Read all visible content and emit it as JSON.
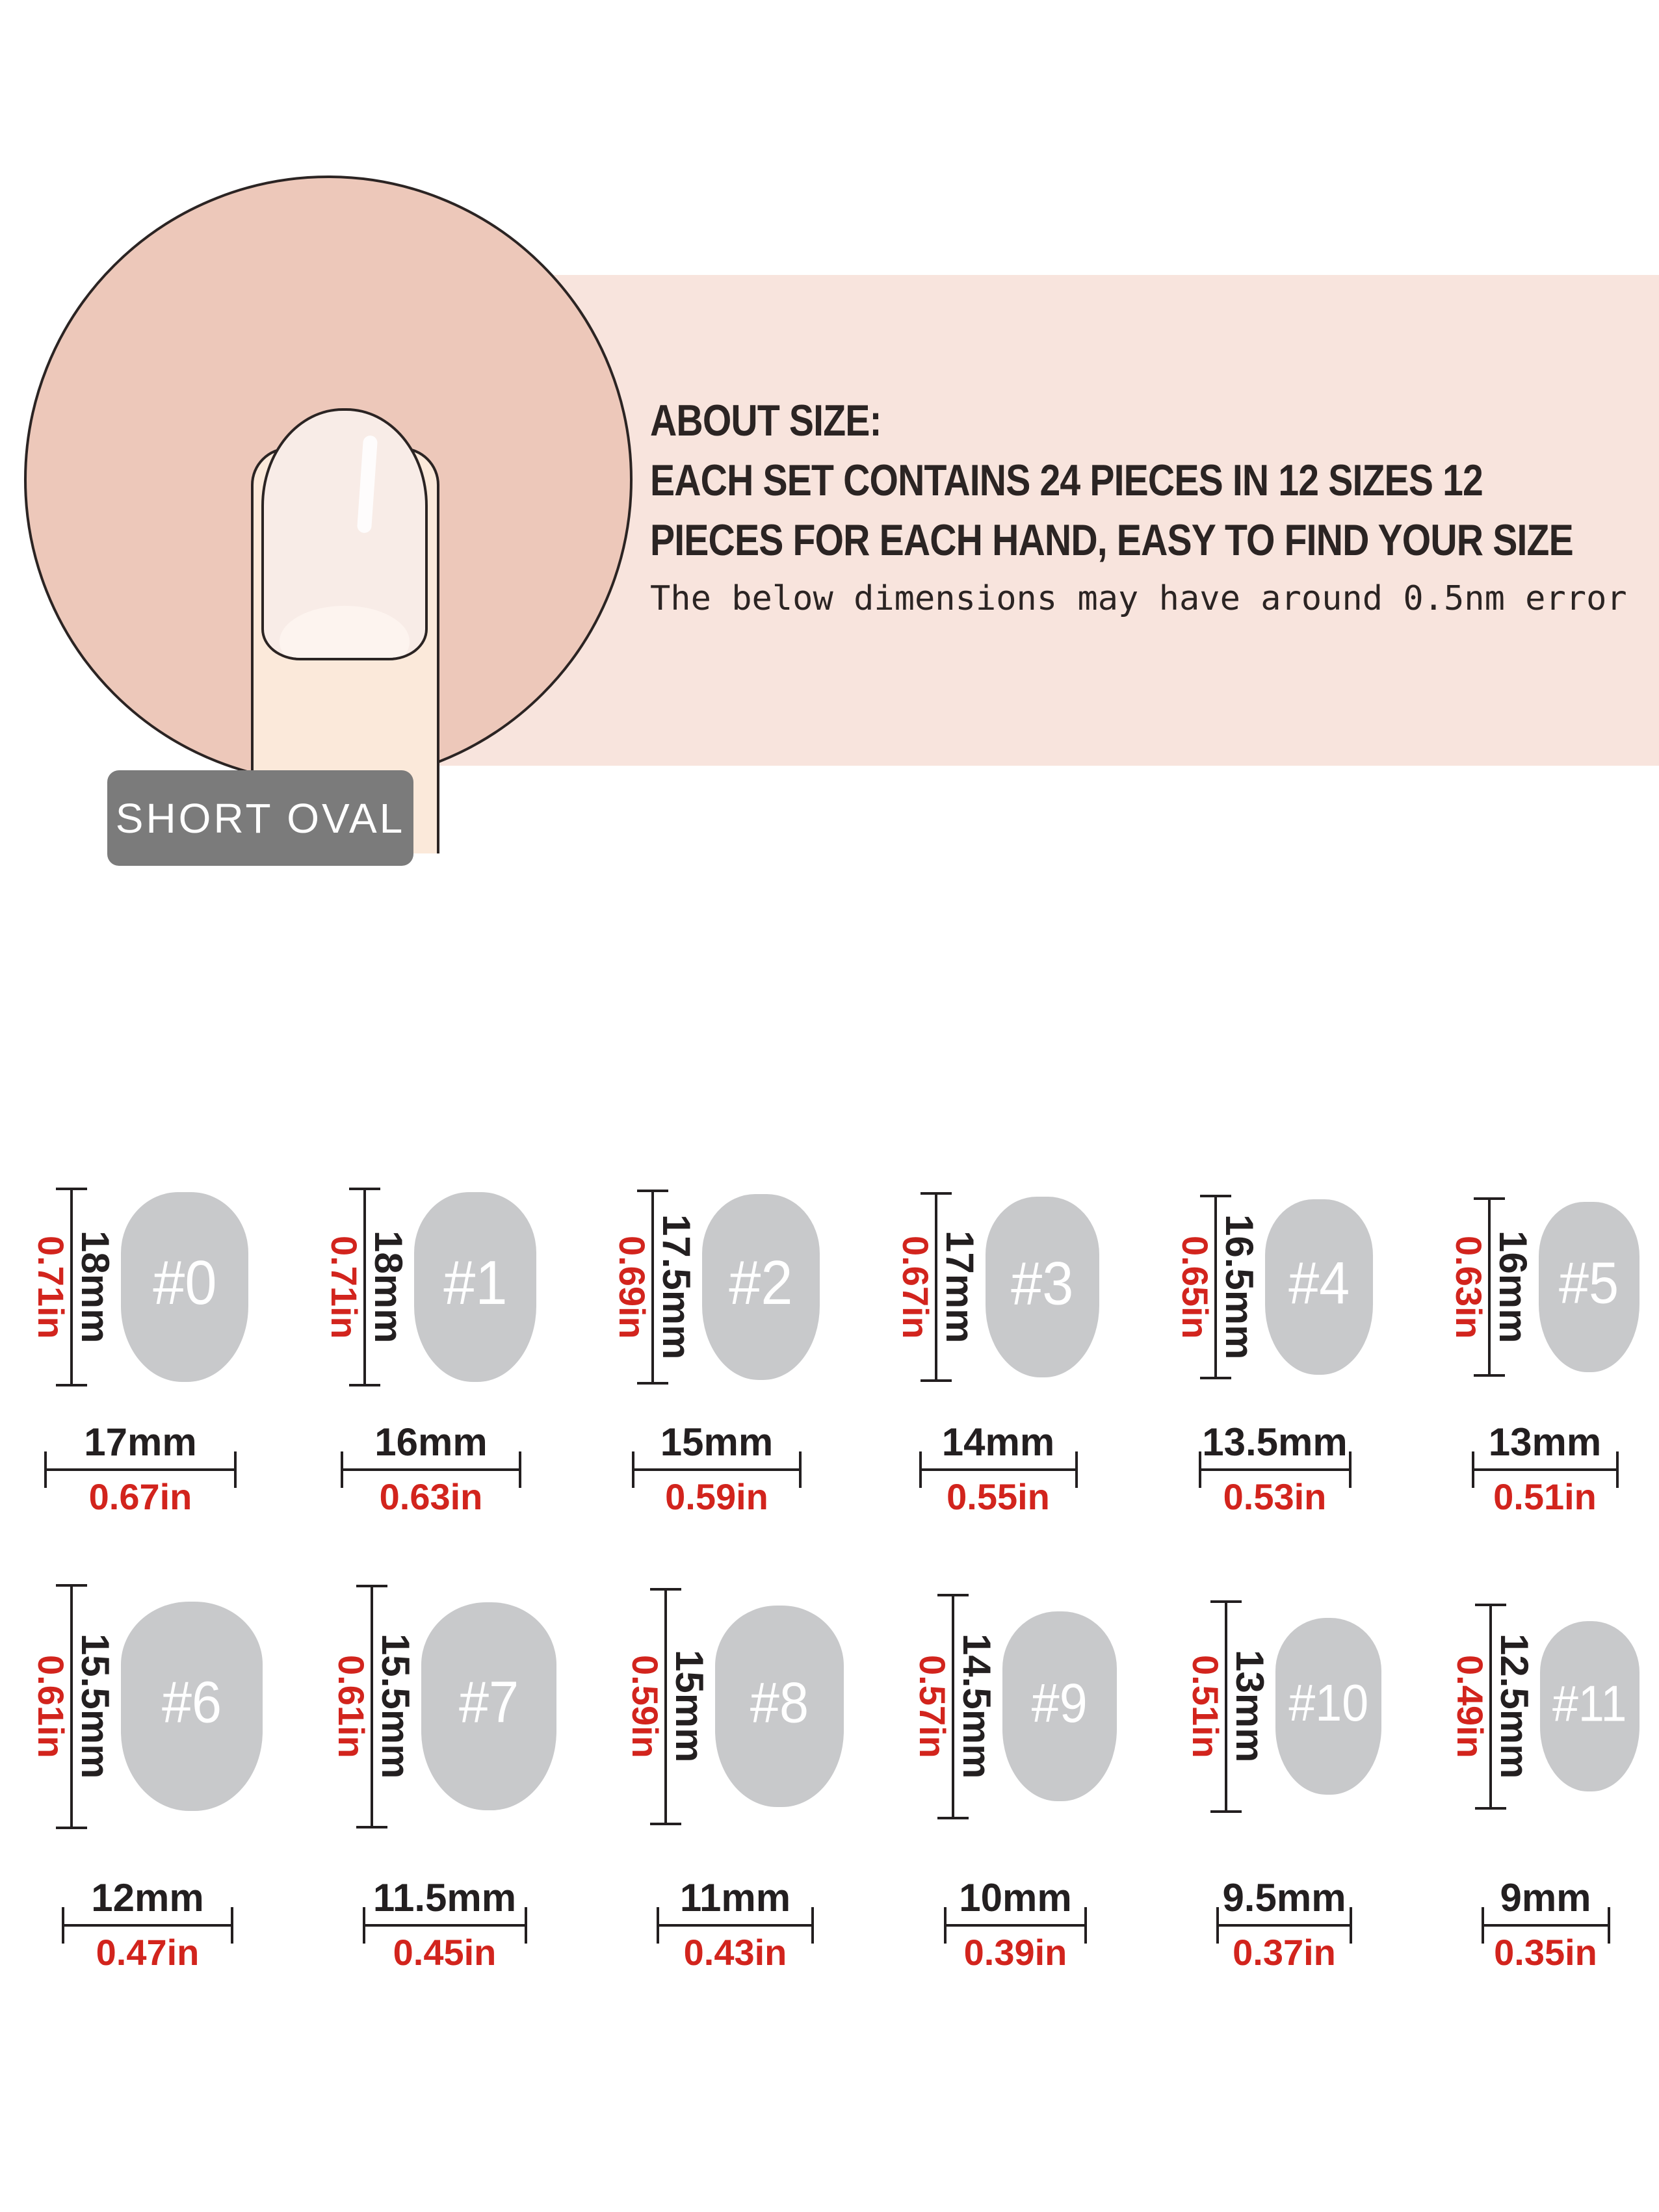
{
  "banner": {
    "title": "ABOUT SIZE:",
    "line1": "EACH SET CONTAINS 24 PIECES IN 12 SIZES 12",
    "line2": "PIECES FOR EACH HAND, EASY TO FIND YOUR SIZE",
    "note": "The below dimensions may have around 0.5nm error"
  },
  "shape_label": "SHORT OVAL",
  "colors": {
    "banner_bg": "#F8E4DD",
    "circle_fill": "#EDC8BA",
    "finger_skin": "#FBE9DA",
    "nail_plate": "#F8ECE7",
    "nail_smile": "#FDF4EF",
    "outline_ink": "#2B2423",
    "dim_ink": "#231F20",
    "accent_red": "#D2241D",
    "nail_gray": "#C8C9CB",
    "label_box_gray": "#7B7B7B"
  },
  "sizes": [
    {
      "id": "#0",
      "length_mm": "18mm",
      "length_in": "0.71in",
      "width_mm": "17mm",
      "width_in": "0.67in",
      "geo": {
        "nw": 196,
        "nh": 292,
        "lh": 306,
        "dw": 296,
        "fs": 96
      }
    },
    {
      "id": "#1",
      "length_mm": "18mm",
      "length_in": "0.71in",
      "width_mm": "16mm",
      "width_in": "0.63in",
      "geo": {
        "nw": 188,
        "nh": 292,
        "lh": 306,
        "dw": 278,
        "fs": 96
      }
    },
    {
      "id": "#2",
      "length_mm": "17.5mm",
      "length_in": "0.69in",
      "width_mm": "15mm",
      "width_in": "0.59in",
      "geo": {
        "nw": 181,
        "nh": 286,
        "lh": 300,
        "dw": 261,
        "fs": 96
      }
    },
    {
      "id": "#3",
      "length_mm": "17mm",
      "length_in": "0.67in",
      "width_mm": "14mm",
      "width_in": "0.55in",
      "geo": {
        "nw": 175,
        "nh": 278,
        "lh": 292,
        "dw": 244,
        "fs": 94
      }
    },
    {
      "id": "#4",
      "length_mm": "16.5mm",
      "length_in": "0.65in",
      "width_mm": "13.5mm",
      "width_in": "0.53in",
      "geo": {
        "nw": 166,
        "nh": 270,
        "lh": 284,
        "dw": 235,
        "fs": 92
      }
    },
    {
      "id": "#5",
      "length_mm": "16mm",
      "length_in": "0.63in",
      "width_mm": "13mm",
      "width_in": "0.51in",
      "geo": {
        "nw": 155,
        "nh": 262,
        "lh": 276,
        "dw": 226,
        "fs": 90
      }
    },
    {
      "id": "#6",
      "length_mm": "15.5mm",
      "length_in": "0.61in",
      "width_mm": "12mm",
      "width_in": "0.47in",
      "geo": {
        "nw": 218,
        "nh": 322,
        "lh": 377,
        "dw": 264,
        "fs": 90
      }
    },
    {
      "id": "#7",
      "length_mm": "15.5mm",
      "length_in": "0.61in",
      "width_mm": "11.5mm",
      "width_in": "0.45in",
      "geo": {
        "nw": 208,
        "nh": 320,
        "lh": 375,
        "dw": 253,
        "fs": 90
      }
    },
    {
      "id": "#8",
      "length_mm": "15mm",
      "length_in": "0.59in",
      "width_mm": "11mm",
      "width_in": "0.43in",
      "geo": {
        "nw": 198,
        "nh": 310,
        "lh": 365,
        "dw": 242,
        "fs": 88
      }
    },
    {
      "id": "#9",
      "length_mm": "14.5mm",
      "length_in": "0.57in",
      "width_mm": "10mm",
      "width_in": "0.39in",
      "geo": {
        "nw": 176,
        "nh": 292,
        "lh": 347,
        "dw": 220,
        "fs": 84
      }
    },
    {
      "id": "#10",
      "length_mm": "13mm",
      "length_in": "0.51in",
      "width_mm": "9.5mm",
      "width_in": "0.37in",
      "geo": {
        "nw": 163,
        "nh": 272,
        "lh": 327,
        "dw": 209,
        "fs": 80
      }
    },
    {
      "id": "#11",
      "length_mm": "12.5mm",
      "length_in": "0.49in",
      "width_mm": "9mm",
      "width_in": "0.35in",
      "geo": {
        "nw": 153,
        "nh": 262,
        "lh": 317,
        "dw": 198,
        "fs": 78
      }
    }
  ]
}
